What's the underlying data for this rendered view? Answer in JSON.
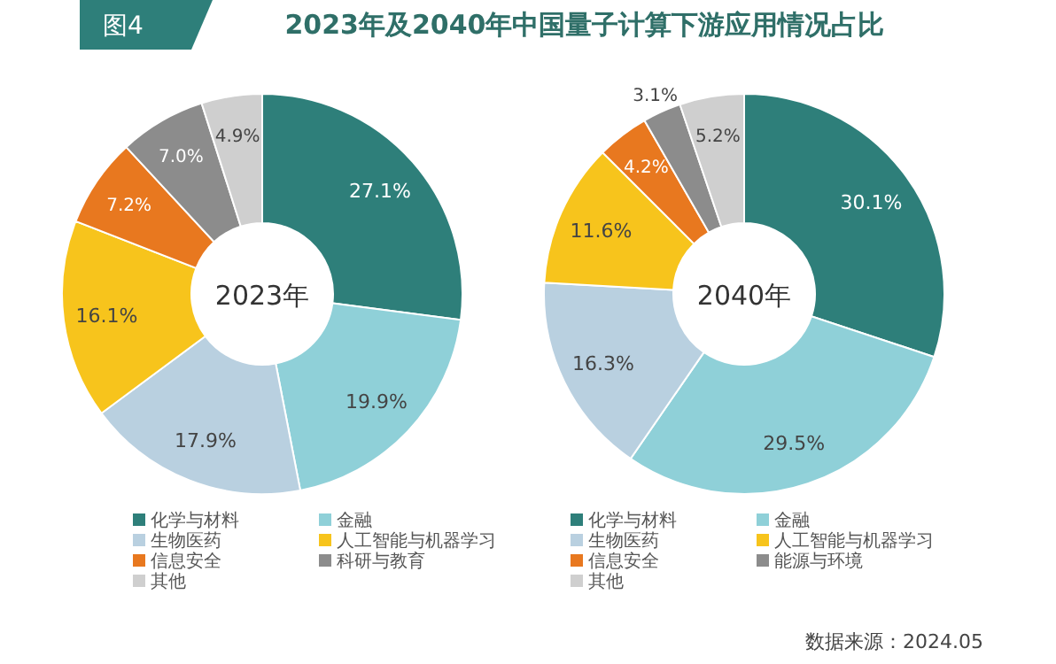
{
  "chart_data": [
    {
      "type": "donut",
      "title": "2023年及2040年中国量子计算下游应用情况占比",
      "annotations": [
        "图4",
        "2023年"
      ],
      "legend": "bottom",
      "categories": [
        "化学与材料",
        "金融",
        "生物医药",
        "人工智能与机器学习",
        "信息安全",
        "科研与教育",
        "其他"
      ],
      "values": [
        27.1,
        19.9,
        17.9,
        16.1,
        7.2,
        7.0,
        4.9
      ],
      "value_labels": [
        "27.1%",
        "19.9%",
        "17.9%",
        "16.1%",
        "7.2%",
        "7.0%",
        "4.9%"
      ],
      "colors": [
        "#2e7f7a",
        "#8fd0d8",
        "#b9d0e0",
        "#f7c41c",
        "#e8781f",
        "#8c8c8c",
        "#cfcfcf"
      ]
    },
    {
      "type": "donut",
      "annotations": [
        "2040年",
        "数据来源：2024.05"
      ],
      "legend": "bottom",
      "categories": [
        "化学与材料",
        "金融",
        "生物医药",
        "人工智能与机器学习",
        "信息安全",
        "能源与环境",
        "其他"
      ],
      "values": [
        30.1,
        29.5,
        16.3,
        11.6,
        4.2,
        3.1,
        5.2
      ],
      "value_labels": [
        "30.1%",
        "29.5%",
        "16.3%",
        "11.6%",
        "4.2%",
        "3.1%",
        "5.2%"
      ],
      "colors": [
        "#2e7f7a",
        "#8fd0d8",
        "#b9d0e0",
        "#f7c41c",
        "#e8781f",
        "#8c8c8c",
        "#cfcfcf"
      ]
    }
  ]
}
